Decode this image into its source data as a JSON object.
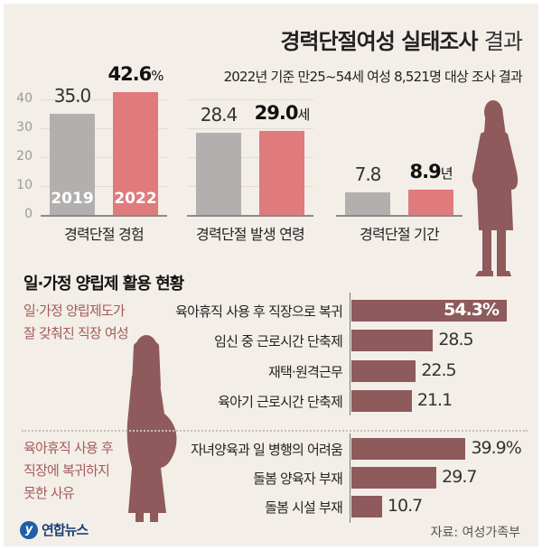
{
  "header": {
    "title_bold": "경력단절여성 실태조사",
    "title_light": "결과",
    "subtitle": "2022년 기준 만25~54세 여성 8,521명 대상 조사 결과"
  },
  "colors": {
    "y2019": "#b2b0af",
    "y2022": "#df7b7d",
    "accent": "#8e5a5b",
    "side_label": "#a35b5b",
    "background": "#f3eee8"
  },
  "chart_data": [
    {
      "type": "bar",
      "categories": [
        "경력단절 경험",
        "경력단절 발생 연령",
        "경력단절 기간"
      ],
      "series": [
        {
          "name": "2019",
          "values": [
            35.0,
            28.4,
            7.8
          ]
        },
        {
          "name": "2022",
          "values": [
            42.6,
            29.0,
            8.9
          ]
        }
      ],
      "units": [
        "%",
        "세",
        "년"
      ],
      "yticks": [
        0,
        10,
        20,
        30,
        40
      ],
      "ylim": [
        0,
        40
      ],
      "grid": true
    },
    {
      "type": "bar",
      "orientation": "horizontal",
      "title": "일·가정 양립제 활용 현황",
      "group_label": "일·가정 양립제도가 잘 갖춰진 직장 여성",
      "categories": [
        "육아휴직 사용 후 직장으로 복귀",
        "임신 중 근로시간 단축제",
        "재택·원격근무",
        "육아기 근로시간 단축제"
      ],
      "values": [
        54.3,
        28.5,
        22.5,
        21.1
      ],
      "unit": "%"
    },
    {
      "type": "bar",
      "orientation": "horizontal",
      "group_label": "육아휴직 사용 후 직장에 복귀하지 못한 사유",
      "categories": [
        "자녀양육과 일 병행의 어려움",
        "돌봄 양육자 부재",
        "돌봄 시설 부재"
      ],
      "values": [
        39.9,
        29.7,
        10.7
      ],
      "unit": "%"
    }
  ],
  "side_labels": {
    "group1": [
      "일·가정 양립제도가",
      "잘 갖춰진 직장 여성"
    ],
    "group2": [
      "육아휴직 사용 후",
      "직장에 복귀하지",
      "못한 사유"
    ]
  },
  "footer": {
    "logo": "연합뉴스",
    "source": "자료: 여성가족부"
  }
}
